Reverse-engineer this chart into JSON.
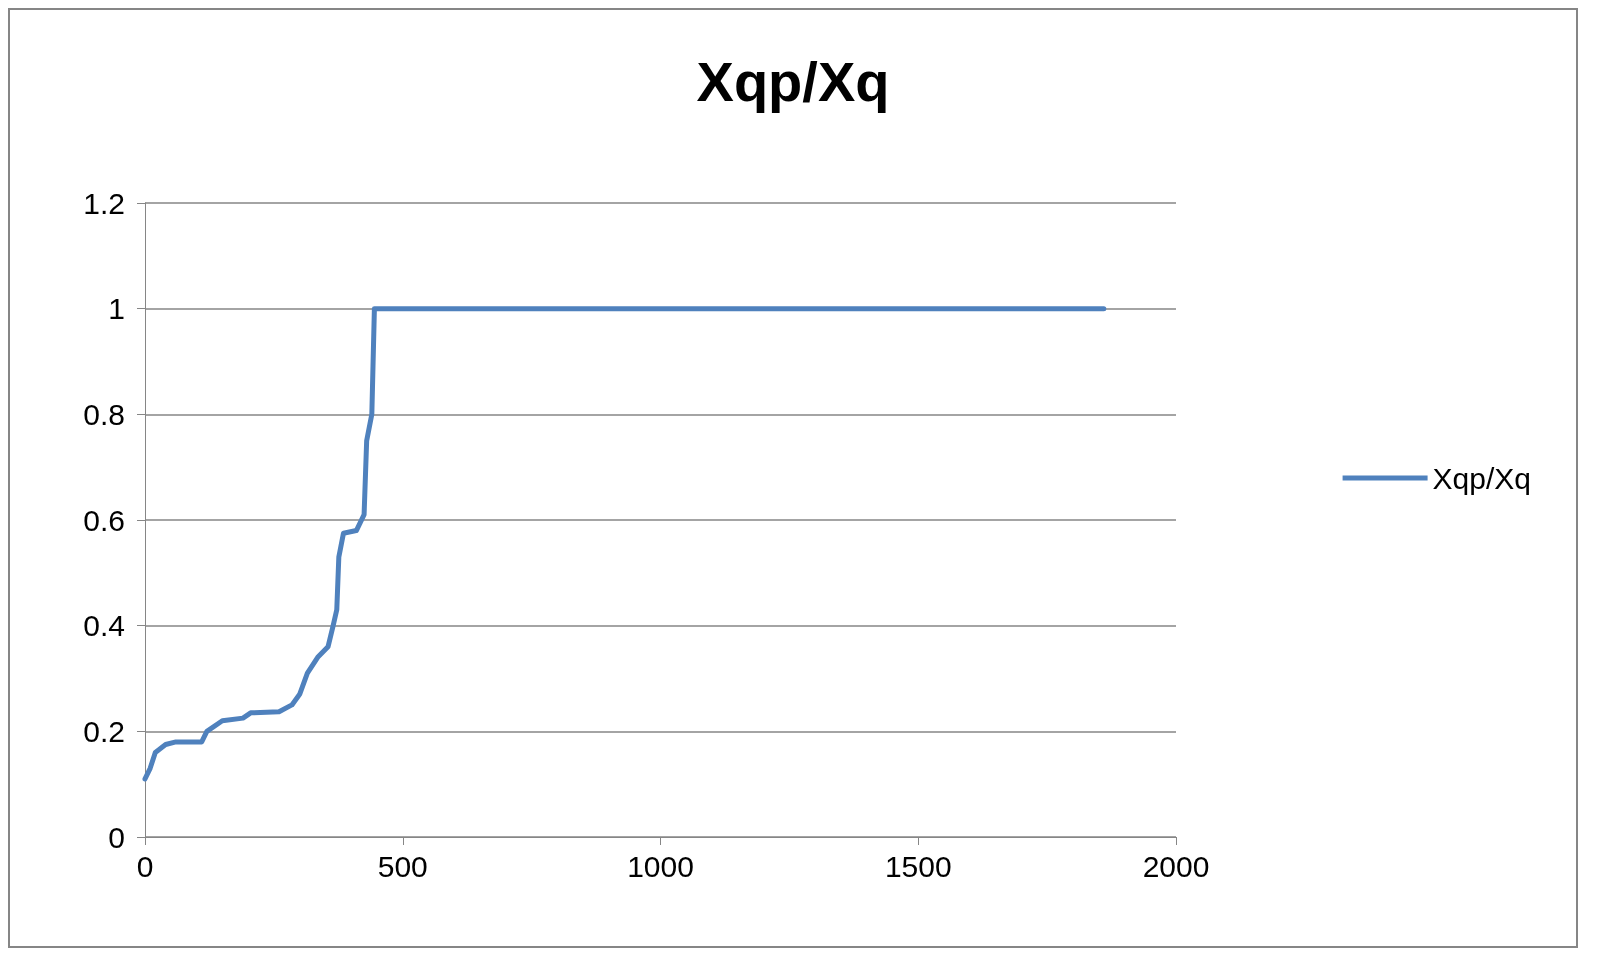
{
  "chart_data": {
    "type": "line",
    "title": "Xqp/Xq",
    "x": [
      0,
      10,
      20,
      40,
      60,
      110,
      120,
      150,
      190,
      205,
      260,
      285,
      300,
      315,
      335,
      345,
      355,
      365,
      372,
      376,
      385,
      410,
      425,
      430,
      440,
      445,
      455,
      1860
    ],
    "series": [
      {
        "name": "Xqp/Xq",
        "color": "#4f81bd",
        "values": [
          0.11,
          0.13,
          0.16,
          0.175,
          0.18,
          0.18,
          0.2,
          0.22,
          0.225,
          0.235,
          0.237,
          0.25,
          0.27,
          0.31,
          0.34,
          0.35,
          0.36,
          0.4,
          0.43,
          0.53,
          0.575,
          0.58,
          0.61,
          0.75,
          0.8,
          1.0,
          1.0,
          1.0
        ]
      }
    ],
    "xlim": [
      0,
      2000
    ],
    "xticks": [
      0,
      500,
      1000,
      1500,
      2000
    ],
    "ylim": [
      0,
      1.2
    ],
    "yticks": [
      0,
      0.2,
      0.4,
      0.6,
      0.8,
      1,
      1.2
    ],
    "grid": "y",
    "legend": "right",
    "marker": "none",
    "line_style": "solid"
  }
}
